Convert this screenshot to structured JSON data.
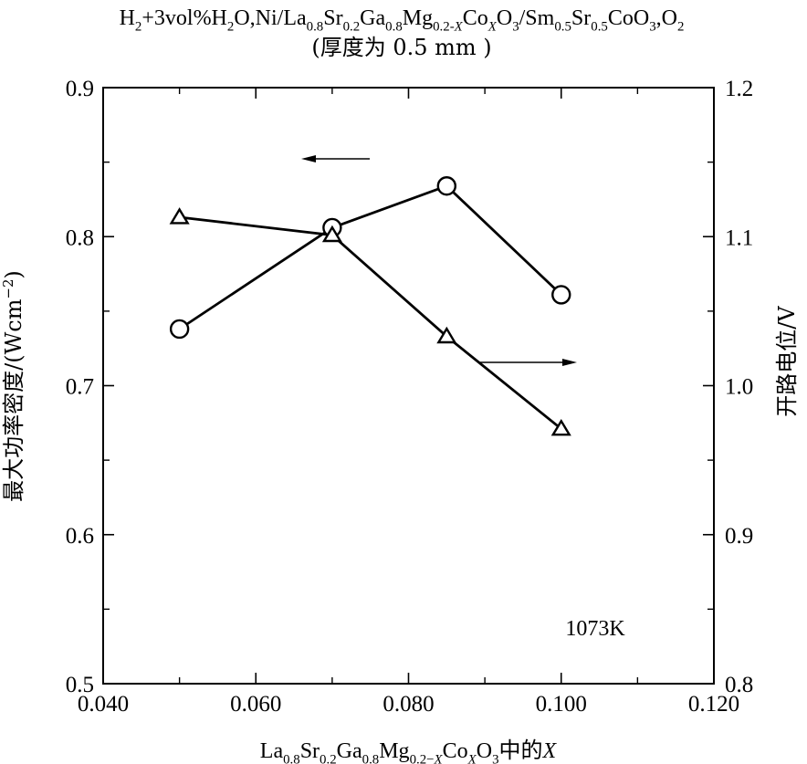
{
  "chart_data": {
    "type": "line",
    "title": {
      "segments": [
        {
          "t": "H"
        },
        {
          "t": "2",
          "s": "sub"
        },
        {
          "t": "+3vol%H"
        },
        {
          "t": "2",
          "s": "sub"
        },
        {
          "t": "O,Ni/La"
        },
        {
          "t": "0.8",
          "s": "sub"
        },
        {
          "t": "Sr"
        },
        {
          "t": "0.2",
          "s": "sub"
        },
        {
          "t": "Ga"
        },
        {
          "t": "0.8",
          "s": "sub"
        },
        {
          "t": "Mg"
        },
        {
          "t": "0.2-",
          "s": "sub"
        },
        {
          "t": "X",
          "s": "subi"
        },
        {
          "t": "Co"
        },
        {
          "t": "X",
          "s": "subi"
        },
        {
          "t": "O"
        },
        {
          "t": "3",
          "s": "sub"
        },
        {
          "t": "/Sm"
        },
        {
          "t": "0.5",
          "s": "sub"
        },
        {
          "t": "Sr"
        },
        {
          "t": "0.5",
          "s": "sub"
        },
        {
          "t": "CoO"
        },
        {
          "t": "3",
          "s": "sub"
        },
        {
          "t": ",O"
        },
        {
          "t": "2",
          "s": "sub"
        }
      ]
    },
    "subtitle": "(厚度为 0.5 mm )",
    "xlabel": {
      "segments": [
        {
          "t": "La"
        },
        {
          "t": "0.8",
          "s": "sub"
        },
        {
          "t": "Sr"
        },
        {
          "t": "0.2",
          "s": "sub"
        },
        {
          "t": "Ga"
        },
        {
          "t": "0.8",
          "s": "sub"
        },
        {
          "t": "Mg"
        },
        {
          "t": "0.2−",
          "s": "sub"
        },
        {
          "t": "X",
          "s": "subi"
        },
        {
          "t": "Co"
        },
        {
          "t": "X",
          "s": "subi"
        },
        {
          "t": "O"
        },
        {
          "t": "3",
          "s": "sub"
        },
        {
          "t": "中的"
        },
        {
          "t": "X",
          "s": "i"
        }
      ]
    },
    "ylabel_left": {
      "segments": [
        {
          "t": "最大功率密度/(Wcm"
        },
        {
          "t": "−2",
          "s": "sup"
        },
        {
          "t": ")"
        }
      ]
    },
    "ylabel_right": "开路电位/V",
    "xlim": [
      0.04,
      0.12
    ],
    "ylim_left": [
      0.5,
      0.9
    ],
    "ylim_right": [
      0.8,
      1.2
    ],
    "x_ticks": [
      "0.040",
      "0.060",
      "0.080",
      "0.100",
      "0.120"
    ],
    "y_ticks_left": [
      "0.5",
      "0.6",
      "0.7",
      "0.8",
      "0.9"
    ],
    "y_ticks_right": [
      "0.8",
      "0.9",
      "1.0",
      "1.1",
      "1.2"
    ],
    "grid": false,
    "series": [
      {
        "axis": "left",
        "marker": "circle",
        "x": [
          0.05,
          0.07,
          0.085,
          0.1
        ],
        "y": [
          0.738,
          0.806,
          0.834,
          0.761
        ]
      },
      {
        "axis": "right",
        "marker": "triangle",
        "x": [
          0.05,
          0.07,
          0.085,
          0.1
        ],
        "y": [
          1.113,
          1.101,
          1.033,
          0.971
        ]
      }
    ],
    "annotations": [
      {
        "text": "1073K"
      }
    ]
  }
}
